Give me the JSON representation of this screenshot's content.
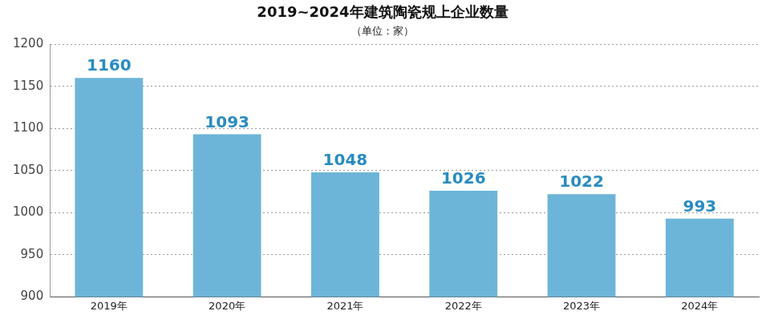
{
  "chart_data": {
    "type": "bar",
    "title": "2019~2024年建筑陶瓷规上企业数量",
    "subtitle": "（单位：家）",
    "categories": [
      "2019年",
      "2020年",
      "2021年",
      "2022年",
      "2023年",
      "2024年"
    ],
    "values": [
      1160,
      1093,
      1048,
      1026,
      1022,
      993
    ],
    "color": "#6db5d8",
    "ylim": [
      900,
      1200
    ],
    "yticks": [
      900,
      950,
      1000,
      1050,
      1100,
      1150,
      1200
    ],
    "grid": true,
    "data_labels": true
  }
}
